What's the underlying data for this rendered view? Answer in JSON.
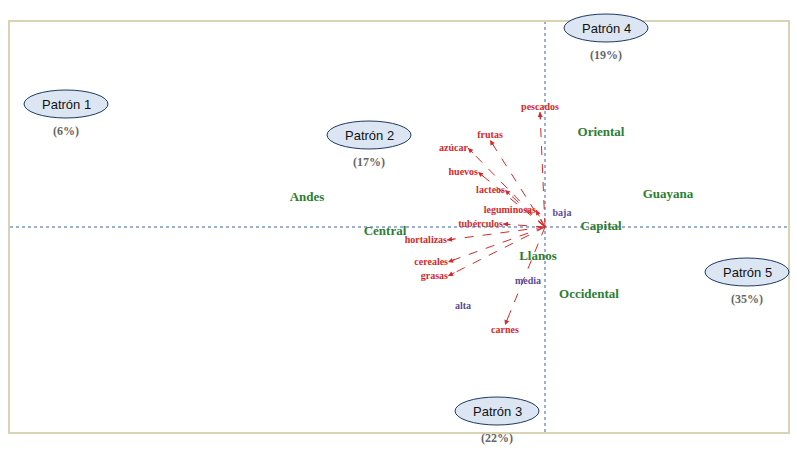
{
  "chart_data": {
    "type": "biplot",
    "xlim": [
      -5.35,
      2.43
    ],
    "ylim": [
      -2.05,
      2.05
    ],
    "tick_labels": false,
    "grid": false,
    "vectors": {
      "color": "#d42a2a",
      "line_style": "dashed",
      "labels": [
        "pescados",
        "frutas",
        "azúcar",
        "huevos",
        "lacteos",
        "leguminosas",
        "tubérculos",
        "hortalizas",
        "cereales",
        "grasas",
        "carnes"
      ],
      "x": [
        -0.05,
        -0.55,
        -0.77,
        -0.67,
        -0.4,
        -0.09,
        -0.42,
        -0.98,
        -0.97,
        -0.97,
        -0.4
      ],
      "y": [
        1.15,
        0.87,
        0.79,
        0.55,
        0.37,
        0.17,
        0.03,
        -0.13,
        -0.35,
        -0.49,
        -0.98
      ]
    },
    "regions": {
      "color": "#2e7d32",
      "labels": [
        "Andes",
        "Central",
        "Llanos",
        "Oriental",
        "Guayana",
        "Capital",
        "Occidental"
      ],
      "x": [
        -2.38,
        -1.6,
        -0.07,
        0.56,
        1.23,
        0.56,
        0.44
      ],
      "y": [
        0.29,
        -0.05,
        -0.3,
        0.94,
        0.32,
        0.0,
        -0.68
      ]
    },
    "levels": {
      "color": "#5b4b9b",
      "labels": [
        "baja",
        "media",
        "alta"
      ],
      "x": [
        0.17,
        -0.17,
        -0.82
      ],
      "y": [
        0.14,
        -0.54,
        -0.79
      ]
    },
    "patterns": {
      "color": "#dce6f2",
      "labels": [
        "Patrón 1",
        "Patrón 2",
        "Patrón 3",
        "Patrón 4",
        "Patrón 5"
      ],
      "x": [
        -4.79,
        -1.76,
        -0.48,
        0.61,
        2.02
      ],
      "y": [
        1.23,
        0.92,
        -1.84,
        1.99,
        -0.45
      ],
      "values": [
        6,
        17,
        22,
        19,
        35
      ],
      "value_labels": [
        "(6%)",
        "(17%)",
        "(22%)",
        "(19%)",
        "(35%)"
      ]
    }
  }
}
